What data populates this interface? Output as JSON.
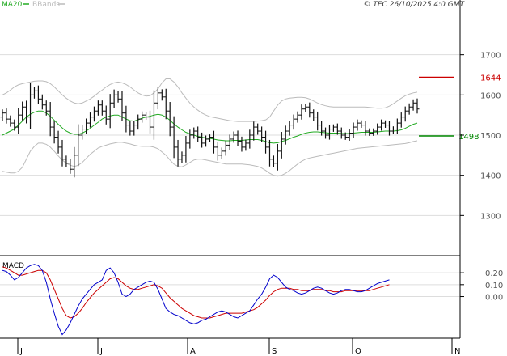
{
  "header": {
    "copyright": "© TEC 26/10/2025 4:0 GMT",
    "legend": [
      {
        "name": "MA20",
        "color": "#22aa22"
      },
      {
        "name": "BBands",
        "color": "#bbbbbb"
      }
    ]
  },
  "chart_data": [
    {
      "type": "ohlc",
      "title": "",
      "ylim": [
        1200,
        1800
      ],
      "y_ticks": [
        1300,
        1400,
        1500,
        1600,
        1700
      ],
      "x_ticks": [
        "J",
        "J",
        "A",
        "S",
        "O",
        "N"
      ],
      "grid": true,
      "colors": {
        "bars": "#111111",
        "ma": "#22aa22",
        "bands": "#bbbbbb",
        "resistance": "#cc0000",
        "support": "#008800"
      },
      "levels": [
        {
          "name": "resistance",
          "value": 1644,
          "label": "1644"
        },
        {
          "name": "support",
          "value": 1498,
          "label": "1498"
        }
      ],
      "series": [
        {
          "name": "price_close",
          "values": [
            1555,
            1540,
            1530,
            1520,
            1550,
            1570,
            1545,
            1600,
            1610,
            1590,
            1575,
            1560,
            1520,
            1495,
            1470,
            1440,
            1430,
            1415,
            1450,
            1500,
            1515,
            1530,
            1545,
            1560,
            1575,
            1560,
            1540,
            1580,
            1600,
            1590,
            1555,
            1525,
            1510,
            1525,
            1540,
            1550,
            1545,
            1520,
            1580,
            1605,
            1595,
            1560,
            1520,
            1470,
            1440,
            1450,
            1480,
            1500,
            1510,
            1495,
            1480,
            1490,
            1495,
            1470,
            1450,
            1460,
            1475,
            1490,
            1500,
            1485,
            1470,
            1480,
            1500,
            1520,
            1510,
            1495,
            1470,
            1440,
            1430,
            1460,
            1490,
            1510,
            1525,
            1540,
            1550,
            1565,
            1570,
            1555,
            1545,
            1525,
            1510,
            1500,
            1515,
            1520,
            1510,
            1500,
            1495,
            1505,
            1520,
            1530,
            1525,
            1510,
            1505,
            1510,
            1520,
            1530,
            1525,
            1510,
            1515,
            1530,
            1545,
            1560,
            1570,
            1580,
            1565
          ]
        },
        {
          "name": "MA20",
          "values": [
            1500,
            1505,
            1510,
            1515,
            1525,
            1535,
            1545,
            1552,
            1557,
            1560,
            1560,
            1555,
            1547,
            1537,
            1527,
            1518,
            1510,
            1505,
            1502,
            1502,
            1505,
            1510,
            1517,
            1525,
            1532,
            1540,
            1545,
            1548,
            1550,
            1550,
            1545,
            1540,
            1536,
            1535,
            1538,
            1542,
            1545,
            1547,
            1550,
            1552,
            1550,
            1545,
            1537,
            1528,
            1520,
            1513,
            1507,
            1503,
            1500,
            1497,
            1495,
            1493,
            1492,
            1490,
            1488,
            1487,
            1486,
            1486,
            1487,
            1487,
            1487,
            1488,
            1489,
            1489,
            1489,
            1487,
            1484,
            1481,
            1480,
            1481,
            1484,
            1487,
            1491,
            1495,
            1498,
            1502,
            1505,
            1507,
            1508,
            1508,
            1507,
            1506,
            1505,
            1505,
            1505,
            1504,
            1504,
            1504,
            1505,
            1506,
            1507,
            1507,
            1507,
            1507,
            1508,
            1509,
            1510,
            1510,
            1510,
            1511,
            1513,
            1517,
            1522,
            1527,
            1530
          ]
        },
        {
          "name": "BBands_upper",
          "values": [
            1600,
            1605,
            1612,
            1620,
            1625,
            1628,
            1630,
            1632,
            1634,
            1635,
            1635,
            1633,
            1628,
            1620,
            1610,
            1600,
            1592,
            1585,
            1580,
            1578,
            1580,
            1585,
            1590,
            1597,
            1605,
            1612,
            1620,
            1626,
            1630,
            1632,
            1630,
            1626,
            1620,
            1612,
            1605,
            1600,
            1597,
            1598,
            1605,
            1615,
            1630,
            1640,
            1640,
            1632,
            1620,
            1605,
            1592,
            1580,
            1570,
            1562,
            1555,
            1550,
            1546,
            1544,
            1542,
            1540,
            1538,
            1536,
            1535,
            1534,
            1534,
            1534,
            1534,
            1534,
            1535,
            1536,
            1538,
            1545,
            1560,
            1575,
            1585,
            1590,
            1592,
            1593,
            1594,
            1594,
            1593,
            1590,
            1585,
            1580,
            1576,
            1573,
            1571,
            1570,
            1570,
            1570,
            1570,
            1570,
            1570,
            1570,
            1570,
            1570,
            1569,
            1568,
            1567,
            1567,
            1568,
            1572,
            1578,
            1585,
            1592,
            1598,
            1602,
            1605,
            1607
          ]
        },
        {
          "name": "BBands_lower",
          "values": [
            1410,
            1408,
            1406,
            1406,
            1410,
            1420,
            1440,
            1460,
            1472,
            1480,
            1480,
            1477,
            1470,
            1460,
            1448,
            1438,
            1430,
            1425,
            1422,
            1425,
            1432,
            1442,
            1452,
            1460,
            1468,
            1472,
            1475,
            1478,
            1480,
            1482,
            1482,
            1480,
            1478,
            1475,
            1473,
            1472,
            1472,
            1472,
            1470,
            1466,
            1458,
            1450,
            1438,
            1428,
            1422,
            1421,
            1426,
            1432,
            1438,
            1440,
            1440,
            1438,
            1436,
            1434,
            1432,
            1430,
            1428,
            1428,
            1428,
            1428,
            1428,
            1427,
            1426,
            1424,
            1422,
            1418,
            1412,
            1405,
            1400,
            1398,
            1400,
            1405,
            1412,
            1420,
            1428,
            1435,
            1440,
            1443,
            1445,
            1447,
            1449,
            1451,
            1453,
            1455,
            1457,
            1459,
            1461,
            1463,
            1465,
            1467,
            1468,
            1469,
            1470,
            1471,
            1472,
            1473,
            1474,
            1475,
            1476,
            1477,
            1478,
            1479,
            1481,
            1484,
            1486
          ]
        }
      ]
    },
    {
      "type": "line",
      "title": "MACD",
      "ylim": [
        -35,
        33
      ],
      "y_ticks": [
        0,
        10,
        20
      ],
      "y_tick_labels": [
        "0.00",
        "0.10",
        "0.20"
      ],
      "grid": true,
      "series": [
        {
          "name": "macd",
          "color": "#0000cc",
          "values": [
            22,
            21,
            18,
            14,
            16,
            20,
            24,
            26,
            27,
            26,
            22,
            12,
            -2,
            -14,
            -25,
            -32,
            -28,
            -22,
            -15,
            -8,
            -2,
            2,
            6,
            10,
            12,
            14,
            22,
            24,
            20,
            12,
            2,
            0,
            2,
            6,
            8,
            10,
            12,
            13,
            12,
            6,
            -2,
            -10,
            -13,
            -15,
            -16,
            -18,
            -20,
            -22,
            -23,
            -22,
            -20,
            -19,
            -17,
            -15,
            -13,
            -12,
            -13,
            -15,
            -17,
            -18,
            -16,
            -14,
            -12,
            -7,
            -2,
            2,
            8,
            15,
            18,
            16,
            12,
            8,
            6,
            5,
            3,
            2,
            3,
            5,
            7,
            8,
            7,
            5,
            3,
            2,
            3,
            5,
            6,
            6,
            5,
            4,
            4,
            5,
            7,
            9,
            11,
            12,
            13,
            14
          ]
        },
        {
          "name": "signal",
          "color": "#cc0000",
          "values": [
            25,
            24,
            22,
            20,
            18,
            18,
            19,
            20,
            21,
            22,
            22,
            20,
            14,
            6,
            -2,
            -10,
            -16,
            -18,
            -17,
            -14,
            -10,
            -5,
            -1,
            3,
            6,
            9,
            12,
            15,
            16,
            15,
            12,
            9,
            7,
            6,
            6,
            7,
            8,
            9,
            10,
            9,
            7,
            3,
            -1,
            -4,
            -7,
            -10,
            -12,
            -14,
            -16,
            -17,
            -18,
            -18,
            -18,
            -17,
            -16,
            -15,
            -14,
            -14,
            -14,
            -14,
            -14,
            -13,
            -12,
            -11,
            -9,
            -6,
            -3,
            1,
            4,
            6,
            7,
            7,
            7,
            6,
            6,
            5,
            5,
            5,
            6,
            6,
            6,
            5,
            5,
            4,
            4,
            4,
            5,
            5,
            5,
            5,
            5,
            5,
            5,
            6,
            7,
            8,
            9,
            10
          ]
        }
      ]
    }
  ]
}
